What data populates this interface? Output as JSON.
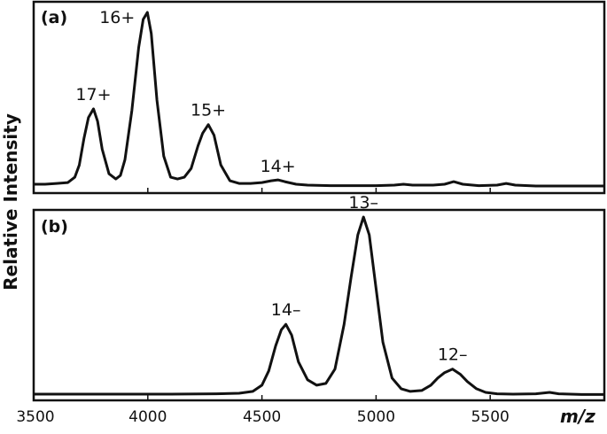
{
  "chart_data": [
    {
      "type": "line",
      "panel_label": "(a)",
      "xlabel": "m/z",
      "ylabel": "Relative Intensity",
      "xlim": [
        3500,
        6000
      ],
      "ylim": [
        0,
        1.05
      ],
      "x_ticks": [
        3500,
        4000,
        4500,
        5000,
        5500
      ],
      "peaks": [
        {
          "label": "17+",
          "x": 3762,
          "y": 0.45
        },
        {
          "label": "16+",
          "x": 3998,
          "y": 1.0
        },
        {
          "label": "15+",
          "x": 4265,
          "y": 0.36
        },
        {
          "label": "14+",
          "x": 4570,
          "y": 0.04
        }
      ],
      "series": [
        {
          "x": [
            3500,
            3550,
            3600,
            3650,
            3680,
            3700,
            3720,
            3740,
            3762,
            3780,
            3800,
            3830,
            3860,
            3880,
            3900,
            3930,
            3960,
            3980,
            3998,
            4015,
            4040,
            4070,
            4100,
            4130,
            4160,
            4190,
            4220,
            4240,
            4265,
            4290,
            4320,
            4360,
            4400,
            4450,
            4500,
            4540,
            4570,
            4600,
            4650,
            4700,
            4800,
            4900,
            5000,
            5080,
            5120,
            5160,
            5250,
            5300,
            5340,
            5380,
            5450,
            5530,
            5570,
            5610,
            5700,
            5800,
            5900,
            6000
          ],
          "y": [
            0.02,
            0.02,
            0.025,
            0.03,
            0.06,
            0.13,
            0.28,
            0.4,
            0.45,
            0.38,
            0.22,
            0.08,
            0.05,
            0.07,
            0.16,
            0.44,
            0.8,
            0.96,
            1.0,
            0.88,
            0.5,
            0.18,
            0.06,
            0.05,
            0.06,
            0.11,
            0.24,
            0.31,
            0.36,
            0.3,
            0.13,
            0.04,
            0.025,
            0.025,
            0.03,
            0.04,
            0.045,
            0.035,
            0.02,
            0.015,
            0.012,
            0.012,
            0.012,
            0.015,
            0.02,
            0.015,
            0.015,
            0.02,
            0.035,
            0.02,
            0.012,
            0.015,
            0.025,
            0.015,
            0.01,
            0.01,
            0.01,
            0.01
          ]
        }
      ]
    },
    {
      "type": "line",
      "panel_label": "(b)",
      "xlabel": "m/z",
      "ylabel": "Relative Intensity",
      "xlim": [
        3500,
        6000
      ],
      "ylim": [
        0,
        1.05
      ],
      "x_ticks": [
        3500,
        4000,
        4500,
        5000,
        5500
      ],
      "x_tick_labels": [
        "3500",
        "4000",
        "4500",
        "5000",
        "5500"
      ],
      "peaks": [
        {
          "label": "14–",
          "x": 4605,
          "y": 0.4
        },
        {
          "label": "13–",
          "x": 4945,
          "y": 1.0
        },
        {
          "label": "12–",
          "x": 5335,
          "y": 0.15
        }
      ],
      "series": [
        {
          "x": [
            3500,
            3700,
            3900,
            4100,
            4300,
            4400,
            4460,
            4500,
            4530,
            4560,
            4585,
            4605,
            4630,
            4660,
            4700,
            4740,
            4780,
            4820,
            4860,
            4890,
            4920,
            4945,
            4970,
            5000,
            5030,
            5070,
            5110,
            5150,
            5200,
            5240,
            5270,
            5300,
            5335,
            5370,
            5400,
            5440,
            5480,
            5530,
            5600,
            5700,
            5760,
            5800,
            5900,
            6000
          ],
          "y": [
            0.01,
            0.01,
            0.01,
            0.01,
            0.012,
            0.015,
            0.025,
            0.06,
            0.14,
            0.28,
            0.37,
            0.4,
            0.34,
            0.19,
            0.09,
            0.06,
            0.07,
            0.15,
            0.4,
            0.66,
            0.9,
            1.0,
            0.9,
            0.6,
            0.3,
            0.1,
            0.04,
            0.025,
            0.03,
            0.06,
            0.1,
            0.13,
            0.15,
            0.12,
            0.08,
            0.04,
            0.02,
            0.012,
            0.01,
            0.012,
            0.02,
            0.012,
            0.008,
            0.008
          ]
        }
      ]
    }
  ]
}
